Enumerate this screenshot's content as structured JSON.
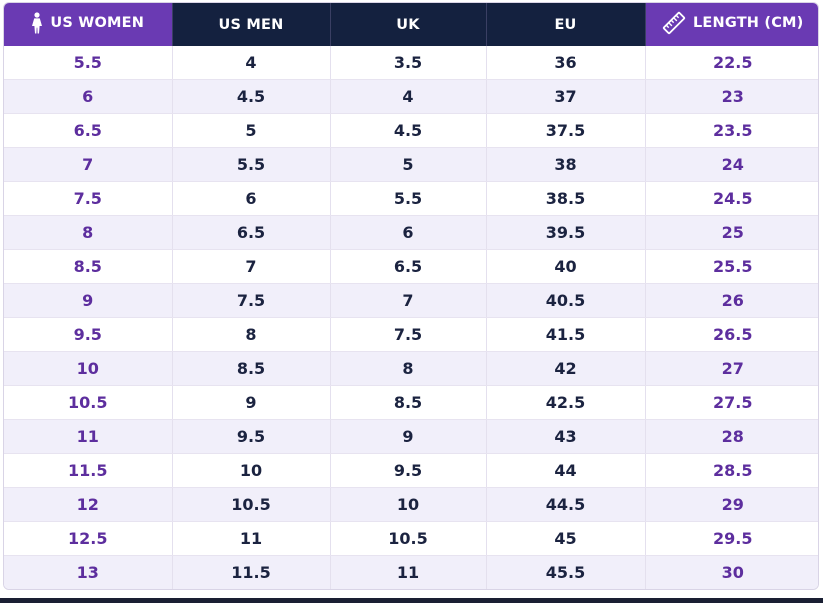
{
  "colors": {
    "header_purple": "#6a3ab3",
    "header_navy": "#14213f",
    "accent_text": "#5d2e9e",
    "body_text": "#1b2340",
    "row_alt": "#f1effa"
  },
  "header": {
    "us_women": {
      "label": "US WOMEN",
      "icon": "woman-icon"
    },
    "us_men": {
      "label": "US MEN"
    },
    "uk": {
      "label": "UK"
    },
    "eu": {
      "label": "EU"
    },
    "length": {
      "label": "LENGTH (CM)",
      "icon": "ruler-icon"
    }
  },
  "rows": [
    [
      "5.5",
      "4",
      "3.5",
      "36",
      "22.5"
    ],
    [
      "6",
      "4.5",
      "4",
      "37",
      "23"
    ],
    [
      "6.5",
      "5",
      "4.5",
      "37.5",
      "23.5"
    ],
    [
      "7",
      "5.5",
      "5",
      "38",
      "24"
    ],
    [
      "7.5",
      "6",
      "5.5",
      "38.5",
      "24.5"
    ],
    [
      "8",
      "6.5",
      "6",
      "39.5",
      "25"
    ],
    [
      "8.5",
      "7",
      "6.5",
      "40",
      "25.5"
    ],
    [
      "9",
      "7.5",
      "7",
      "40.5",
      "26"
    ],
    [
      "9.5",
      "8",
      "7.5",
      "41.5",
      "26.5"
    ],
    [
      "10",
      "8.5",
      "8",
      "42",
      "27"
    ],
    [
      "10.5",
      "9",
      "8.5",
      "42.5",
      "27.5"
    ],
    [
      "11",
      "9.5",
      "9",
      "43",
      "28"
    ],
    [
      "11.5",
      "10",
      "9.5",
      "44",
      "28.5"
    ],
    [
      "12",
      "10.5",
      "10",
      "44.5",
      "29"
    ],
    [
      "12.5",
      "11",
      "10.5",
      "45",
      "29.5"
    ],
    [
      "13",
      "11.5",
      "11",
      "45.5",
      "30"
    ]
  ]
}
